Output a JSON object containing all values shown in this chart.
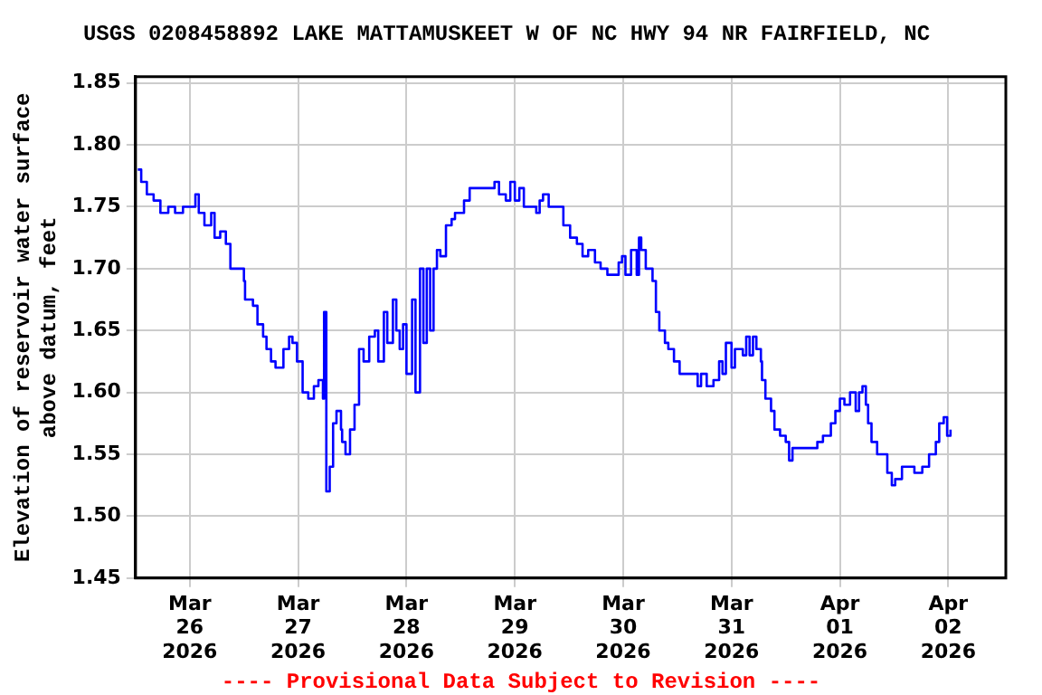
{
  "chart_data": {
    "type": "step",
    "title": "USGS 0208458892 LAKE MATTAMUSKEET W OF NC HWY 94 NR FAIRFIELD, NC",
    "ylabel": "Elevation of reservoir water surface\nabove datum, feet",
    "annotations": [
      "---- Provisional Data Subject to Revision ----"
    ],
    "x": [
      "2026-03-25T12:30",
      "2026-03-25T13:15",
      "2026-03-25T14:30",
      "2026-03-25T16:00",
      "2026-03-25T17:30",
      "2026-03-25T19:15",
      "2026-03-25T20:45",
      "2026-03-25T22:30",
      "2026-03-26T00:30",
      "2026-03-26T01:15",
      "2026-03-26T02:00",
      "2026-03-26T03:15",
      "2026-03-26T04:45",
      "2026-03-26T05:30",
      "2026-03-26T06:45",
      "2026-03-26T08:00",
      "2026-03-26T09:00",
      "2026-03-26T11:00",
      "2026-03-26T12:00",
      "2026-03-26T12:15",
      "2026-03-26T14:00",
      "2026-03-26T15:00",
      "2026-03-26T16:15",
      "2026-03-26T17:00",
      "2026-03-26T18:00",
      "2026-03-26T19:00",
      "2026-03-26T20:45",
      "2026-03-26T22:00",
      "2026-03-26T22:45",
      "2026-03-26T23:45",
      "2026-03-27T01:00",
      "2026-03-27T02:15",
      "2026-03-27T03:30",
      "2026-03-27T04:30",
      "2026-03-27T05:30",
      "2026-03-27T05:45",
      "2026-03-27T06:15",
      "2026-03-27T07:00",
      "2026-03-27T07:45",
      "2026-03-27T08:30",
      "2026-03-27T09:30",
      "2026-03-27T09:45",
      "2026-03-27T10:30",
      "2026-03-27T11:30",
      "2026-03-27T12:30",
      "2026-03-27T13:30",
      "2026-03-27T14:30",
      "2026-03-27T15:45",
      "2026-03-27T17:00",
      "2026-03-27T17:45",
      "2026-03-27T19:00",
      "2026-03-27T19:45",
      "2026-03-27T21:00",
      "2026-03-27T21:45",
      "2026-03-27T22:30",
      "2026-03-27T23:15",
      "2026-03-28T00:00",
      "2026-03-28T01:15",
      "2026-03-28T02:00",
      "2026-03-28T03:00",
      "2026-03-28T03:45",
      "2026-03-28T04:30",
      "2026-03-28T05:15",
      "2026-03-28T06:00",
      "2026-03-28T06:45",
      "2026-03-28T07:30",
      "2026-03-28T08:45",
      "2026-03-28T10:00",
      "2026-03-28T10:45",
      "2026-03-28T11:30",
      "2026-03-28T12:45",
      "2026-03-28T14:00",
      "2026-03-28T18:45",
      "2026-03-28T19:30",
      "2026-03-28T20:30",
      "2026-03-28T22:00",
      "2026-03-28T23:00",
      "2026-03-29T00:00",
      "2026-03-29T01:00",
      "2026-03-29T02:00",
      "2026-03-29T03:30",
      "2026-03-29T04:45",
      "2026-03-29T05:30",
      "2026-03-29T06:15",
      "2026-03-29T07:30",
      "2026-03-29T09:00",
      "2026-03-29T10:45",
      "2026-03-29T12:15",
      "2026-03-29T13:45",
      "2026-03-29T15:00",
      "2026-03-29T16:15",
      "2026-03-29T17:45",
      "2026-03-29T19:00",
      "2026-03-29T20:30",
      "2026-03-29T22:15",
      "2026-03-29T23:00",
      "2026-03-29T23:45",
      "2026-03-30T00:30",
      "2026-03-30T01:45",
      "2026-03-30T03:00",
      "2026-03-30T03:30",
      "2026-03-30T04:00",
      "2026-03-30T05:00",
      "2026-03-30T06:30",
      "2026-03-30T07:15",
      "2026-03-30T08:00",
      "2026-03-30T09:15",
      "2026-03-30T10:00",
      "2026-03-30T11:15",
      "2026-03-30T12:30",
      "2026-03-30T15:15",
      "2026-03-30T16:30",
      "2026-03-30T17:15",
      "2026-03-30T18:30",
      "2026-03-30T20:00",
      "2026-03-30T21:15",
      "2026-03-30T22:00",
      "2026-03-30T22:45",
      "2026-03-31T00:00",
      "2026-03-31T00:45",
      "2026-03-31T02:30",
      "2026-03-31T03:15",
      "2026-03-31T04:00",
      "2026-03-31T04:45",
      "2026-03-31T05:30",
      "2026-03-31T06:30",
      "2026-03-31T06:45",
      "2026-03-31T07:30",
      "2026-03-31T08:45",
      "2026-03-31T09:30",
      "2026-03-31T10:45",
      "2026-03-31T12:00",
      "2026-03-31T12:45",
      "2026-03-31T13:30",
      "2026-03-31T14:15",
      "2026-03-31T17:00",
      "2026-03-31T19:00",
      "2026-03-31T20:15",
      "2026-03-31T22:00",
      "2026-03-31T23:00",
      "2026-04-01T00:00",
      "2026-04-01T01:00",
      "2026-04-01T02:15",
      "2026-04-01T03:30",
      "2026-04-01T04:15",
      "2026-04-01T05:00",
      "2026-04-01T05:45",
      "2026-04-01T06:15",
      "2026-04-01T07:00",
      "2026-04-01T08:15",
      "2026-04-01T09:30",
      "2026-04-01T10:30",
      "2026-04-01T11:30",
      "2026-04-01T12:15",
      "2026-04-01T13:45",
      "2026-04-01T15:00",
      "2026-04-01T16:30",
      "2026-04-01T18:15",
      "2026-04-01T19:45",
      "2026-04-01T21:15",
      "2026-04-01T22:00",
      "2026-04-01T23:00",
      "2026-04-01T23:45",
      "2026-04-02T00:30"
    ],
    "series": [
      {
        "color": "#0000ff",
        "values": [
          1.78,
          1.77,
          1.76,
          1.755,
          1.745,
          1.75,
          1.745,
          1.75,
          1.75,
          1.76,
          1.745,
          1.735,
          1.745,
          1.725,
          1.73,
          1.72,
          1.7,
          1.7,
          1.69,
          1.675,
          1.67,
          1.655,
          1.645,
          1.635,
          1.625,
          1.62,
          1.635,
          1.645,
          1.64,
          1.625,
          1.6,
          1.595,
          1.605,
          1.61,
          1.595,
          1.665,
          1.52,
          1.54,
          1.575,
          1.585,
          1.57,
          1.56,
          1.55,
          1.57,
          1.59,
          1.635,
          1.625,
          1.645,
          1.65,
          1.625,
          1.665,
          1.64,
          1.675,
          1.65,
          1.635,
          1.655,
          1.615,
          1.675,
          1.6,
          1.7,
          1.64,
          1.7,
          1.65,
          1.7,
          1.715,
          1.71,
          1.735,
          1.74,
          1.745,
          1.745,
          1.755,
          1.765,
          1.765,
          1.77,
          1.76,
          1.755,
          1.77,
          1.755,
          1.765,
          1.75,
          1.75,
          1.745,
          1.755,
          1.76,
          1.75,
          1.75,
          1.735,
          1.725,
          1.72,
          1.71,
          1.715,
          1.705,
          1.7,
          1.695,
          1.695,
          1.705,
          1.71,
          1.695,
          1.715,
          1.695,
          1.725,
          1.715,
          1.7,
          1.69,
          1.665,
          1.65,
          1.64,
          1.635,
          1.625,
          1.615,
          1.615,
          1.605,
          1.615,
          1.605,
          1.61,
          1.625,
          1.615,
          1.64,
          1.62,
          1.635,
          1.63,
          1.645,
          1.63,
          1.645,
          1.635,
          1.625,
          1.61,
          1.595,
          1.585,
          1.57,
          1.565,
          1.56,
          1.545,
          1.555,
          1.555,
          1.555,
          1.56,
          1.565,
          1.575,
          1.585,
          1.595,
          1.59,
          1.6,
          1.585,
          1.6,
          1.605,
          1.59,
          1.575,
          1.56,
          1.55,
          1.55,
          1.535,
          1.525,
          1.53,
          1.54,
          1.54,
          1.535,
          1.54,
          1.55,
          1.56,
          1.575,
          1.58,
          1.565,
          1.57
        ]
      }
    ],
    "xlim": [
      "2026-03-25T12:00",
      "2026-04-02T12:45"
    ],
    "xticks": [
      {
        "value": "2026-03-26",
        "label": "Mar\n26\n2026"
      },
      {
        "value": "2026-03-27",
        "label": "Mar\n27\n2026"
      },
      {
        "value": "2026-03-28",
        "label": "Mar\n28\n2026"
      },
      {
        "value": "2026-03-29",
        "label": "Mar\n29\n2026"
      },
      {
        "value": "2026-03-30",
        "label": "Mar\n30\n2026"
      },
      {
        "value": "2026-03-31",
        "label": "Mar\n31\n2026"
      },
      {
        "value": "2026-04-01",
        "label": "Apr\n01\n2026"
      },
      {
        "value": "2026-04-02",
        "label": "Apr\n02\n2026"
      }
    ],
    "ylim": [
      1.45,
      1.855
    ],
    "yticks": [
      1.45,
      {
        "value": 1.5,
        "label": "1.50"
      },
      1.55,
      {
        "value": 1.6,
        "label": "1.60"
      },
      1.65,
      {
        "value": 1.7,
        "label": "1.70"
      },
      1.75,
      {
        "value": 1.8,
        "label": "1.80"
      },
      1.85
    ],
    "grid": true,
    "legend": false,
    "marker": "none",
    "line_style": "solid"
  }
}
